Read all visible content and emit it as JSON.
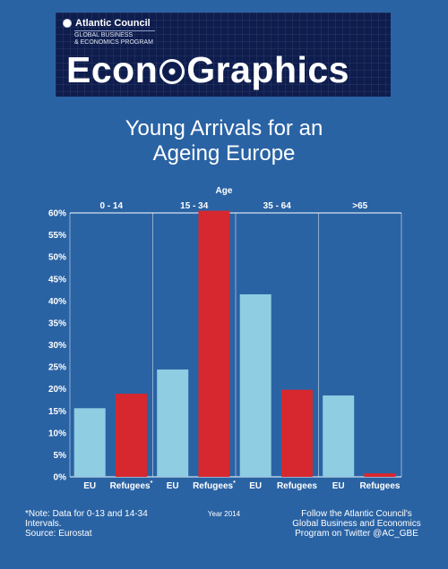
{
  "banner": {
    "brand_name": "Atlantic Council",
    "program": "GLOBAL BUSINESS\n& ECONOMICS PROGRAM",
    "wordmark_left": "Econ",
    "wordmark_right": "Graphics"
  },
  "title_line1": "Young Arrivals for an",
  "title_line2": "Ageing Europe",
  "footer": {
    "note_line1": "*Note: Data for 0-13 and 14-34",
    "note_line2": "Intervals.",
    "note_line3": "Source: Eurostat",
    "year": "Year 2014",
    "follow_line1": "Follow the Atlantic Council's",
    "follow_line2": "Global Business and Economics",
    "follow_line3": "Program on Twitter @AC_GBE"
  },
  "colors": {
    "background": "#2a63a4",
    "eu": "#8fcde3",
    "refugees": "#d7282f",
    "banner": "#0e1d4e"
  },
  "chart_data": {
    "type": "bar",
    "group_axis_label": "Age",
    "groups": [
      "0 - 14",
      "15 - 34",
      "35 - 64",
      ">65"
    ],
    "ylim": [
      0,
      60
    ],
    "yticks": [
      "0%",
      "5%",
      "10%",
      "15%",
      "20%",
      "25%",
      "30%",
      "35%",
      "40%",
      "45%",
      "50%",
      "55%",
      "60%"
    ],
    "series": [
      {
        "name": "EU",
        "tick_labels": [
          "EU",
          "EU",
          "EU",
          "EU"
        ],
        "values": [
          15.6,
          24.4,
          41.5,
          18.5
        ]
      },
      {
        "name": "Refugees",
        "tick_labels": [
          "Refugees*",
          "Refugees*",
          "Refugees",
          "Refugees"
        ],
        "values": [
          18.9,
          60.5,
          19.8,
          0.8
        ]
      }
    ]
  }
}
